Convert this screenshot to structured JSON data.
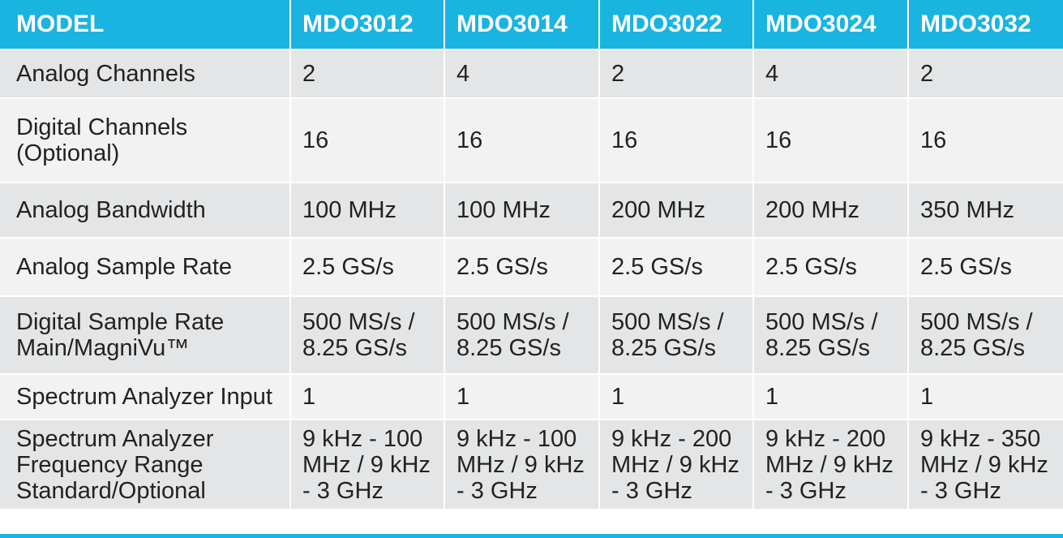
{
  "table": {
    "header": [
      "MODEL",
      "MDO3012",
      "MDO3014",
      "MDO3022",
      "MDO3024",
      "MDO3032"
    ],
    "rows": [
      {
        "label": "Analog Channels",
        "cells": [
          "2",
          "4",
          "2",
          "4",
          "2"
        ]
      },
      {
        "label": "Digital Channels\n(Optional)",
        "cells": [
          "16",
          "16",
          "16",
          "16",
          "16"
        ]
      },
      {
        "label": "Analog Bandwidth",
        "cells": [
          "100 MHz",
          "100 MHz",
          "200 MHz",
          "200 MHz",
          "350 MHz"
        ]
      },
      {
        "label": "Analog Sample Rate",
        "cells": [
          "2.5 GS/s",
          "2.5 GS/s",
          "2.5 GS/s",
          "2.5 GS/s",
          "2.5 GS/s"
        ]
      },
      {
        "label": "Digital Sample Rate\nMain/MagniVu™",
        "cells": [
          "500 MS/s /\n8.25 GS/s",
          "500 MS/s /\n8.25 GS/s",
          "500 MS/s /\n8.25 GS/s",
          "500 MS/s /\n8.25 GS/s",
          "500 MS/s /\n8.25 GS/s"
        ]
      },
      {
        "label": "Spectrum Analyzer Input",
        "cells": [
          "1",
          "1",
          "1",
          "1",
          "1"
        ]
      },
      {
        "label": "Spectrum Analyzer\nFrequency Range\nStandard/Optional",
        "cells": [
          "9 kHz - 100\nMHz / 9 kHz\n- 3 GHz",
          "9 kHz - 100\nMHz / 9 kHz\n- 3 GHz",
          "9 kHz - 200\nMHz / 9 kHz\n- 3 GHz",
          "9 kHz - 200\nMHz / 9 kHz\n- 3 GHz",
          "9 kHz - 350\nMHz / 9 kHz\n- 3 GHz"
        ]
      }
    ]
  },
  "colors": {
    "header_background": "#1ab4e0",
    "header_text": "#ffffff",
    "row_odd": "#e4e5e6",
    "row_even": "#f2f2f3",
    "body_text": "#222222"
  }
}
